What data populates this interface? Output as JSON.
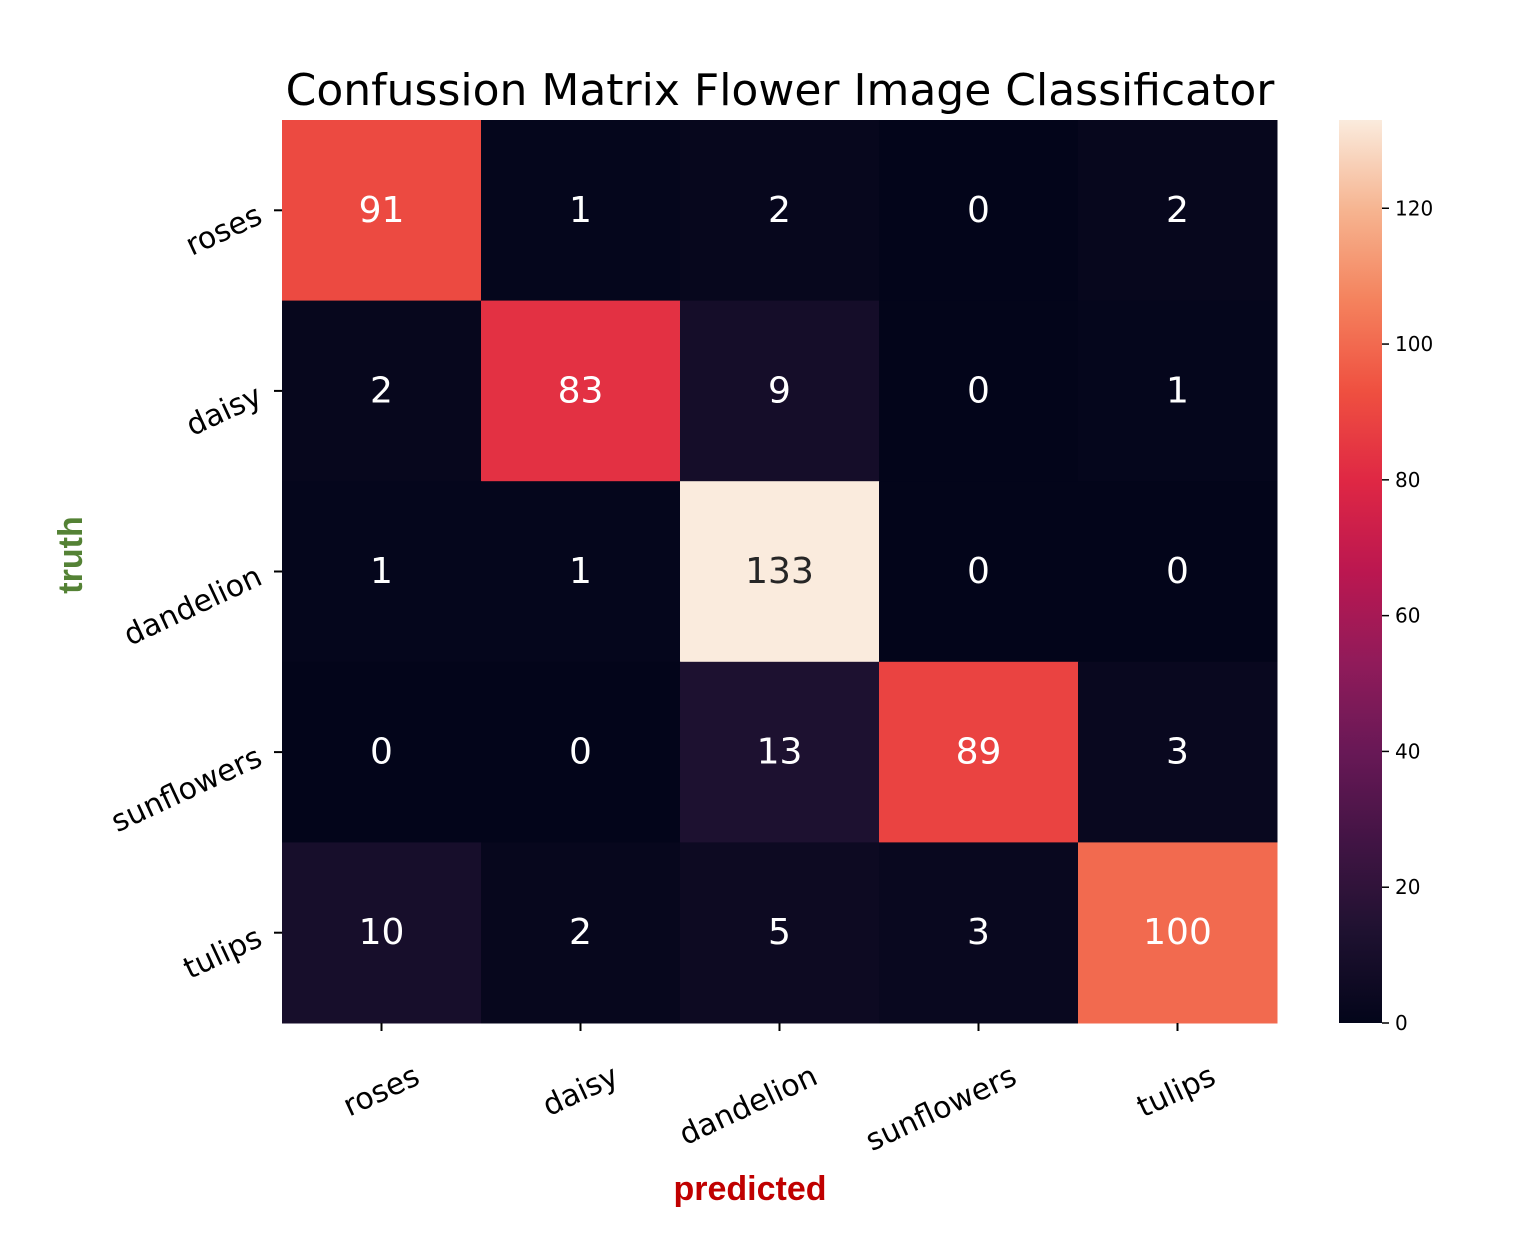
{
  "chart_data": {
    "type": "heatmap",
    "title": "Confussion Matrix Flower Image Classificator",
    "xlabel": "predicted",
    "ylabel": "truth",
    "x_categories": [
      "roses",
      "daisy",
      "dandelion",
      "sunflowers",
      "tulips"
    ],
    "y_categories": [
      "roses",
      "daisy",
      "dandelion",
      "sunflowers",
      "tulips"
    ],
    "values": [
      [
        91,
        1,
        2,
        0,
        2
      ],
      [
        2,
        83,
        9,
        0,
        1
      ],
      [
        1,
        1,
        133,
        0,
        0
      ],
      [
        0,
        0,
        13,
        89,
        3
      ],
      [
        10,
        2,
        5,
        3,
        100
      ]
    ],
    "colorbar": {
      "range": [
        0,
        133
      ],
      "ticks": [
        0,
        20,
        40,
        60,
        80,
        100,
        120
      ]
    },
    "colormap": "rocket",
    "colors": {
      "xlabel": "#c00000",
      "ylabel": "#548235"
    }
  }
}
